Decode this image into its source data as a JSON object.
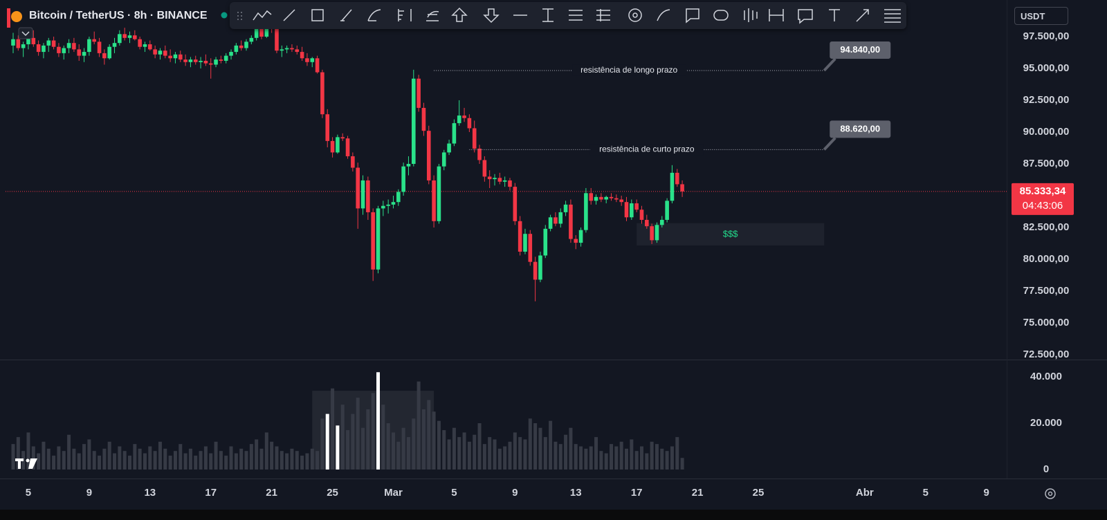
{
  "chart_data": {
    "type": "candlestick",
    "title": "Bitcoin / TetherUS · 8h · BINANCE",
    "currency": "USDT",
    "up_color": "#2ae28a",
    "down_color": "#f23645",
    "grid": false,
    "ohlc": [
      [
        96800,
        97800,
        96200,
        97300
      ],
      [
        97300,
        97600,
        96400,
        96600
      ],
      [
        96600,
        97100,
        95900,
        96900
      ],
      [
        96900,
        97700,
        96500,
        97400
      ],
      [
        97400,
        98000,
        96700,
        96900
      ],
      [
        96900,
        97200,
        96000,
        96300
      ],
      [
        96300,
        97000,
        95800,
        96800
      ],
      [
        96800,
        97400,
        96300,
        97200
      ],
      [
        97200,
        97500,
        96500,
        96700
      ],
      [
        96700,
        97000,
        95900,
        96200
      ],
      [
        96200,
        96800,
        95700,
        96600
      ],
      [
        96600,
        97300,
        96200,
        97000
      ],
      [
        97000,
        97400,
        96300,
        96500
      ],
      [
        96500,
        96900,
        95600,
        96000
      ],
      [
        96000,
        96600,
        95500,
        96300
      ],
      [
        96300,
        97500,
        96000,
        97300
      ],
      [
        97300,
        97900,
        96900,
        97100
      ],
      [
        97100,
        97400,
        95900,
        96200
      ],
      [
        96200,
        96500,
        95300,
        95800
      ],
      [
        95800,
        96900,
        95700,
        96700
      ],
      [
        96700,
        97400,
        96200,
        97000
      ],
      [
        97000,
        98000,
        96800,
        97700
      ],
      [
        97700,
        98200,
        97200,
        97400
      ],
      [
        97400,
        97900,
        97000,
        97600
      ],
      [
        97600,
        98000,
        97200,
        97300
      ],
      [
        97300,
        97500,
        96500,
        96700
      ],
      [
        96700,
        97100,
        96300,
        96900
      ],
      [
        96900,
        97200,
        96400,
        96500
      ],
      [
        96500,
        96800,
        95800,
        96100
      ],
      [
        96100,
        96600,
        95700,
        96400
      ],
      [
        96400,
        96800,
        95800,
        96000
      ],
      [
        96000,
        96500,
        95500,
        95800
      ],
      [
        95800,
        96300,
        95400,
        96100
      ],
      [
        96100,
        96400,
        95500,
        95700
      ],
      [
        95700,
        96100,
        95200,
        95500
      ],
      [
        95500,
        95900,
        95100,
        95700
      ],
      [
        95700,
        96000,
        95300,
        95500
      ],
      [
        95500,
        95900,
        95000,
        95600
      ],
      [
        95600,
        96100,
        95200,
        95400
      ],
      [
        95400,
        95800,
        94200,
        95300
      ],
      [
        95300,
        95900,
        95100,
        95700
      ],
      [
        95700,
        96000,
        95400,
        95600
      ],
      [
        95600,
        96200,
        95400,
        96000
      ],
      [
        96000,
        96500,
        95700,
        96300
      ],
      [
        96300,
        97000,
        96100,
        96800
      ],
      [
        96800,
        97200,
        96400,
        96600
      ],
      [
        96600,
        97300,
        96400,
        97100
      ],
      [
        97100,
        97600,
        96900,
        97400
      ],
      [
        97400,
        98300,
        97200,
        98100
      ],
      [
        98100,
        98600,
        97300,
        97500
      ],
      [
        97500,
        98900,
        97400,
        98600
      ],
      [
        98600,
        98800,
        97800,
        98100
      ],
      [
        98100,
        98400,
        96200,
        96400
      ],
      [
        96400,
        96800,
        95900,
        96500
      ],
      [
        96500,
        96800,
        96200,
        96600
      ],
      [
        96600,
        96900,
        96300,
        96500
      ],
      [
        96500,
        96800,
        96100,
        96300
      ],
      [
        96300,
        96700,
        95600,
        95800
      ],
      [
        95800,
        96200,
        95200,
        95500
      ],
      [
        95500,
        95900,
        95100,
        95800
      ],
      [
        95800,
        96000,
        94600,
        94700
      ],
      [
        94700,
        94900,
        91100,
        91400
      ],
      [
        91400,
        91800,
        88800,
        89300
      ],
      [
        89300,
        89600,
        88000,
        88400
      ],
      [
        88400,
        89800,
        88300,
        89600
      ],
      [
        89600,
        89900,
        89300,
        89500
      ],
      [
        89500,
        89700,
        87900,
        88100
      ],
      [
        88100,
        88400,
        86900,
        87200
      ],
      [
        87200,
        87600,
        82400,
        84000
      ],
      [
        84000,
        86600,
        83500,
        86200
      ],
      [
        86200,
        86500,
        83100,
        83700
      ],
      [
        83700,
        84000,
        78300,
        79200
      ],
      [
        79200,
        84200,
        78900,
        84000
      ],
      [
        84000,
        84600,
        83400,
        84200
      ],
      [
        84200,
        84700,
        83600,
        84300
      ],
      [
        84300,
        85000,
        84000,
        84500
      ],
      [
        84500,
        85500,
        84200,
        85300
      ],
      [
        85300,
        87600,
        85000,
        87300
      ],
      [
        87300,
        88100,
        86600,
        87500
      ],
      [
        87500,
        94900,
        87300,
        94200
      ],
      [
        94200,
        94500,
        91600,
        91900
      ],
      [
        91900,
        92300,
        89700,
        90100
      ],
      [
        90100,
        90500,
        85900,
        86200
      ],
      [
        86200,
        86600,
        82500,
        83000
      ],
      [
        83000,
        87500,
        82800,
        87300
      ],
      [
        87300,
        88600,
        87000,
        88400
      ],
      [
        88400,
        89400,
        88200,
        89100
      ],
      [
        89100,
        91000,
        88900,
        90700
      ],
      [
        90700,
        92500,
        90500,
        91300
      ],
      [
        91300,
        91900,
        90800,
        91100
      ],
      [
        91100,
        91400,
        90000,
        90300
      ],
      [
        90300,
        90900,
        88400,
        88700
      ],
      [
        88700,
        89000,
        87500,
        87800
      ],
      [
        87800,
        88100,
        86100,
        86500
      ],
      [
        86500,
        87000,
        85600,
        86300
      ],
      [
        86300,
        86700,
        85800,
        86400
      ],
      [
        86400,
        86800,
        85900,
        86100
      ],
      [
        86100,
        86500,
        85700,
        86200
      ],
      [
        86200,
        86400,
        85400,
        85700
      ],
      [
        85700,
        86000,
        82700,
        83000
      ],
      [
        83000,
        83400,
        80300,
        80600
      ],
      [
        80600,
        82400,
        80400,
        82000
      ],
      [
        82000,
        82300,
        79500,
        79800
      ],
      [
        79800,
        80200,
        76700,
        78400
      ],
      [
        78400,
        80600,
        78200,
        80300
      ],
      [
        80300,
        82700,
        80100,
        82400
      ],
      [
        82400,
        83500,
        82200,
        83300
      ],
      [
        83300,
        83700,
        82600,
        82800
      ],
      [
        82800,
        84000,
        82500,
        83700
      ],
      [
        83700,
        84600,
        83400,
        84300
      ],
      [
        84300,
        84700,
        81300,
        81600
      ],
      [
        81600,
        81900,
        80800,
        81300
      ],
      [
        81300,
        82500,
        81000,
        82300
      ],
      [
        82300,
        85600,
        82100,
        85200
      ],
      [
        85200,
        85600,
        84300,
        84600
      ],
      [
        84600,
        85100,
        84300,
        84900
      ],
      [
        84900,
        85200,
        84500,
        84700
      ],
      [
        84700,
        85000,
        84400,
        84900
      ],
      [
        84900,
        85200,
        84600,
        84800
      ],
      [
        84800,
        85100,
        84500,
        84700
      ],
      [
        84700,
        85000,
        84200,
        84500
      ],
      [
        84500,
        84900,
        83000,
        83300
      ],
      [
        83300,
        84700,
        83100,
        84400
      ],
      [
        84400,
        84700,
        83700,
        83900
      ],
      [
        83900,
        84200,
        82800,
        83100
      ],
      [
        83100,
        83500,
        82400,
        82600
      ],
      [
        82600,
        82800,
        81200,
        81500
      ],
      [
        81500,
        82900,
        81300,
        82700
      ],
      [
        82700,
        83400,
        82500,
        83100
      ],
      [
        83100,
        84800,
        82900,
        84600
      ],
      [
        84600,
        87400,
        84400,
        86800
      ],
      [
        86800,
        87100,
        85700,
        85900
      ],
      [
        85900,
        86200,
        84900,
        85333
      ]
    ],
    "xlim": [
      -1.5,
      196
    ],
    "xticks": [
      {
        "value": 3,
        "label": "5"
      },
      {
        "value": 15,
        "label": "9"
      },
      {
        "value": 27,
        "label": "13"
      },
      {
        "value": 39,
        "label": "17"
      },
      {
        "value": 51,
        "label": "21"
      },
      {
        "value": 63,
        "label": "25"
      },
      {
        "value": 75,
        "label": "Mar"
      },
      {
        "value": 87,
        "label": "5"
      },
      {
        "value": 99,
        "label": "9"
      },
      {
        "value": 111,
        "label": "13"
      },
      {
        "value": 123,
        "label": "17"
      },
      {
        "value": 135,
        "label": "21"
      },
      {
        "value": 147,
        "label": "25"
      },
      {
        "value": 168,
        "label": "Abr"
      },
      {
        "value": 180,
        "label": "5"
      },
      {
        "value": 192,
        "label": "9"
      }
    ],
    "ylim": [
      72120,
      100380
    ],
    "yticks": [
      {
        "value": 72500,
        "label": "72.500,00"
      },
      {
        "value": 75000,
        "label": "75.000,00"
      },
      {
        "value": 77500,
        "label": "77.500,00"
      },
      {
        "value": 80000,
        "label": "80.000,00"
      },
      {
        "value": 82500,
        "label": "82.500,00"
      },
      {
        "value": 87500,
        "label": "87.500,00"
      },
      {
        "value": 90000,
        "label": "90.000,00"
      },
      {
        "value": 92500,
        "label": "92.500,00"
      },
      {
        "value": 95000,
        "label": "95.000,00"
      },
      {
        "value": 97500,
        "label": "97.500,00"
      }
    ],
    "last_price": {
      "value": 85333.34,
      "label": "85.333,34"
    },
    "countdown": "04:43:06",
    "annotations": [
      {
        "text": "resistência de longo prazo",
        "price": 94840,
        "price_label": "94.840,00",
        "x": [
          83,
          160
        ]
      },
      {
        "text": "resistência de curto prazo",
        "price": 88620,
        "price_label": "88.620,00",
        "x": [
          90,
          160
        ]
      }
    ],
    "zones": [
      {
        "text": "$$$",
        "top": 82840,
        "bottom": 81090,
        "x": [
          123,
          160
        ]
      }
    ],
    "volume": {
      "color": "#363a45",
      "highlight_color": "#ffffff",
      "highlighted": [
        62,
        64,
        72
      ],
      "ylim": [
        0,
        47160
      ],
      "yticks": [
        0,
        {
          "value": 20000,
          "label": "20.000"
        },
        {
          "value": 40000,
          "label": "40.000"
        }
      ],
      "zone": {
        "x": [
          59,
          83
        ],
        "top": 34000
      },
      "values": [
        11000,
        14000,
        8000,
        16000,
        10000,
        7000,
        12000,
        9000,
        6000,
        10000,
        8000,
        15000,
        9000,
        7000,
        11000,
        13000,
        8000,
        6000,
        9000,
        12000,
        7000,
        10000,
        8000,
        6000,
        11000,
        9000,
        7000,
        10000,
        8000,
        12000,
        9000,
        6000,
        8000,
        11000,
        7000,
        9000,
        6000,
        8000,
        10000,
        7000,
        12000,
        8000,
        6000,
        10000,
        7000,
        9000,
        8000,
        11000,
        13000,
        9000,
        16000,
        12000,
        10000,
        8000,
        7000,
        9000,
        8000,
        6000,
        7000,
        9000,
        8000,
        22000,
        24000,
        35000,
        19000,
        28000,
        17000,
        24000,
        31000,
        18000,
        26000,
        33000,
        42000,
        28000,
        20000,
        16000,
        12000,
        18000,
        14000,
        22000,
        38000,
        26000,
        30000,
        25000,
        21000,
        17000,
        13000,
        18000,
        14000,
        16000,
        12000,
        15000,
        20000,
        11000,
        14000,
        13000,
        9000,
        10000,
        12000,
        16000,
        14000,
        13000,
        22000,
        20000,
        18000,
        14000,
        21000,
        12000,
        11000,
        15000,
        18000,
        11000,
        10000,
        9000,
        10000,
        14000,
        8000,
        7000,
        11000,
        10000,
        12000,
        9000,
        13000,
        8000,
        10000,
        7000,
        12000,
        11000,
        9000,
        8000,
        10000,
        14000,
        5000
      ]
    }
  }
}
